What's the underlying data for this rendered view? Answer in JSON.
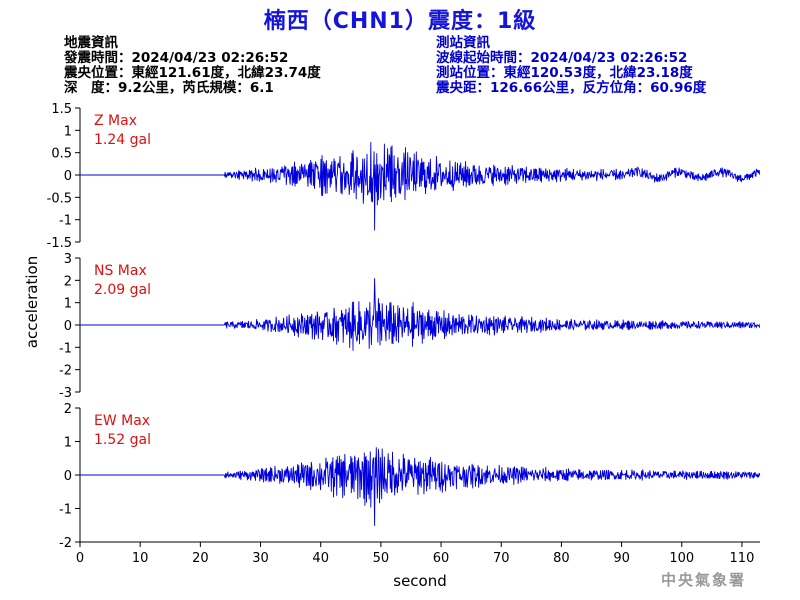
{
  "title": "楠西（CHN1）震度：1級",
  "quake_info": {
    "heading": "地震資訊",
    "time": "發震時間：2024/04/23 02:26:52",
    "epicenter": "震央位置：東經121.61度，北緯23.74度",
    "depth_magnitude": "深　度：9.2公里，芮氏規模：6.1"
  },
  "station_info": {
    "heading": "測站資訊",
    "wave_start": "波線起始時間：2024/04/23 02:26:52",
    "location": "測站位置：東經120.53度，北緯23.18度",
    "distance_azimuth": "震央距：126.66公里，反方位角：60.96度"
  },
  "watermark": "中央氣象署",
  "colors": {
    "trace": "#0000dd",
    "max_label": "#e01010",
    "title": "#1414dc",
    "station_info": "#0000cc"
  },
  "chart_data": {
    "type": "line",
    "xlabel": "second",
    "ylabel": "acceleration",
    "xlim": [
      0,
      113
    ],
    "xticks": [
      0,
      10,
      20,
      30,
      40,
      50,
      60,
      70,
      80,
      90,
      100,
      110
    ],
    "onset_seconds": 24,
    "peak_time_seconds": 49,
    "panels": [
      {
        "name": "Z Max",
        "max_value": "1.24 gal",
        "ylim": [
          -1.5,
          1.5
        ],
        "yticks": [
          1.5,
          1,
          0.5,
          0,
          -0.5,
          -1,
          -1.5
        ],
        "ytick_labels": [
          "1.5",
          "1",
          "0.5",
          "0",
          "-0.5",
          "-1",
          "-1.5"
        ],
        "peak": 1.24
      },
      {
        "name": "NS Max",
        "max_value": "2.09 gal",
        "ylim": [
          -3,
          3
        ],
        "yticks": [
          3,
          2,
          1,
          0,
          -1,
          -2,
          -3
        ],
        "ytick_labels": [
          "3",
          "2",
          "1",
          "0",
          "-1",
          "-2",
          "-3"
        ],
        "peak": 2.09
      },
      {
        "name": "EW Max",
        "max_value": "1.52 gal",
        "ylim": [
          -2,
          2
        ],
        "yticks": [
          2,
          1,
          0,
          -1,
          -2
        ],
        "ytick_labels": [
          "2",
          "1",
          "0",
          "-1",
          "-2"
        ],
        "peak": 1.52
      }
    ]
  }
}
